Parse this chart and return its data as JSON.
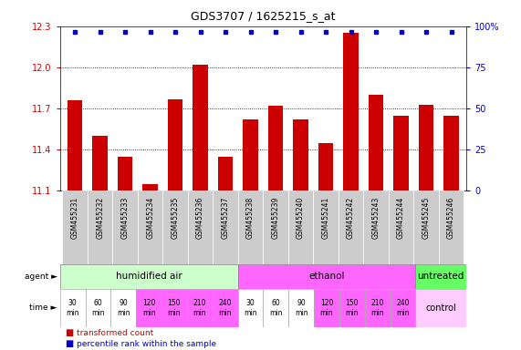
{
  "title": "GDS3707 / 1625215_s_at",
  "samples": [
    "GSM455231",
    "GSM455232",
    "GSM455233",
    "GSM455234",
    "GSM455235",
    "GSM455236",
    "GSM455237",
    "GSM455238",
    "GSM455239",
    "GSM455240",
    "GSM455241",
    "GSM455242",
    "GSM455243",
    "GSM455244",
    "GSM455245",
    "GSM455246"
  ],
  "transformed_count": [
    11.76,
    11.5,
    11.35,
    11.15,
    11.77,
    12.02,
    11.35,
    11.62,
    11.72,
    11.62,
    11.45,
    12.25,
    11.8,
    11.65,
    11.73,
    11.65
  ],
  "ymin": 11.1,
  "ymax": 12.3,
  "yticks": [
    11.1,
    11.4,
    11.7,
    12.0,
    12.3
  ],
  "right_yticks": [
    0,
    25,
    50,
    75,
    100
  ],
  "bar_color": "#cc0000",
  "dot_color": "#0000cc",
  "agent_groups": [
    {
      "label": "humidified air",
      "start": 0,
      "end": 7,
      "color": "#ccffcc"
    },
    {
      "label": "ethanol",
      "start": 7,
      "end": 14,
      "color": "#ff66ff"
    },
    {
      "label": "untreated",
      "start": 14,
      "end": 16,
      "color": "#66ff66"
    }
  ],
  "time_labels": [
    "30\nmin",
    "60\nmin",
    "90\nmin",
    "120\nmin",
    "150\nmin",
    "210\nmin",
    "240\nmin",
    "30\nmin",
    "60\nmin",
    "90\nmin",
    "120\nmin",
    "150\nmin",
    "210\nmin",
    "240\nmin"
  ],
  "time_colors_first7": [
    "#ffffff",
    "#ffffff",
    "#ffffff",
    "#ff66ff",
    "#ff66ff",
    "#ff66ff",
    "#ff66ff"
  ],
  "time_colors_second7": [
    "#ffffff",
    "#ffffff",
    "#ffffff",
    "#ff66ff",
    "#ff66ff",
    "#ff66ff",
    "#ff66ff"
  ],
  "control_color": "#ffccff",
  "legend_bar_label": "transformed count",
  "legend_dot_label": "percentile rank within the sample",
  "bg_color": "#ffffff",
  "sample_bg": "#cccccc"
}
